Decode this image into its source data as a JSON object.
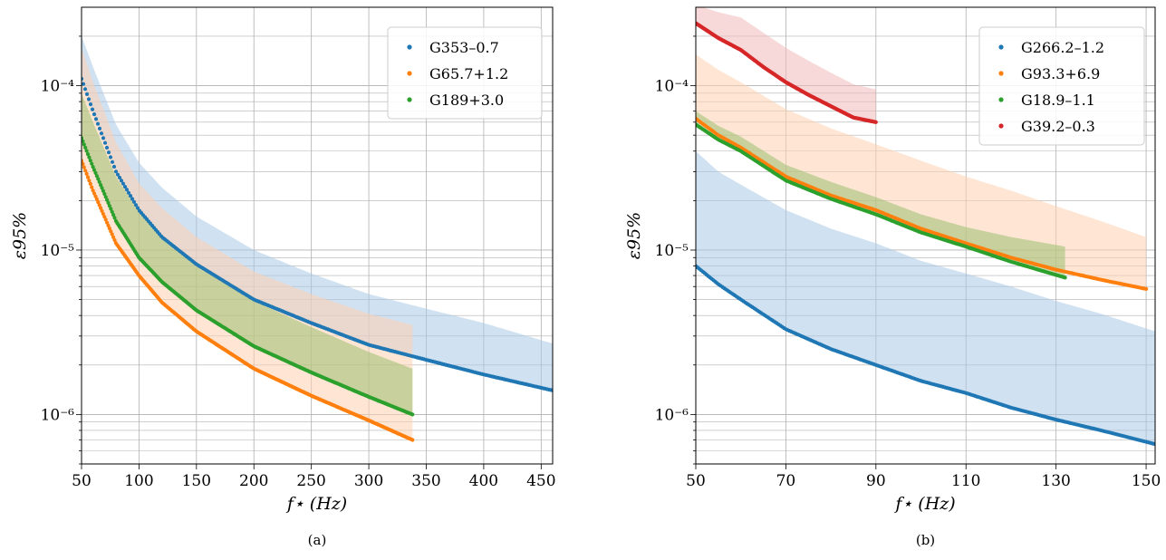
{
  "chart_data": [
    {
      "type": "scatter",
      "panel_label": "(a)",
      "xlabel": "f⋆ (Hz)",
      "ylabel": "ε95%",
      "xlim": [
        50,
        460
      ],
      "ylim": [
        5e-07,
        0.0003
      ],
      "yscale": "log",
      "x_ticks": [
        50,
        100,
        150,
        200,
        250,
        300,
        350,
        400,
        450
      ],
      "y_ticks": [
        {
          "value": 1e-06,
          "label": "10⁻⁶"
        },
        {
          "value": 1e-05,
          "label": "10⁻⁵"
        },
        {
          "value": 0.0001,
          "label": "10⁻⁴"
        }
      ],
      "grid": true,
      "legend_position": "top-right",
      "series": [
        {
          "name": "G353–0.7",
          "color": "#1f77b4",
          "band_color": "#aac9e6",
          "x": [
            50,
            60,
            80,
            100,
            120,
            150,
            200,
            250,
            300,
            350,
            400,
            460
          ],
          "y": [
            0.00011,
            7e-05,
            3e-05,
            1.75e-05,
            1.2e-05,
            8.2e-06,
            5e-06,
            3.6e-06,
            2.65e-06,
            2.15e-06,
            1.75e-06,
            1.4e-06
          ],
          "band_upper": [
            0.0002,
            0.00013,
            5.8e-05,
            3.4e-05,
            2.4e-05,
            1.6e-05,
            1e-05,
            7.2e-06,
            5.4e-06,
            4.4e-06,
            3.6e-06,
            2.7e-06
          ]
        },
        {
          "name": "G65.7+1.2",
          "color": "#ff7f0e",
          "band_color": "#ffd2b0",
          "x": [
            50,
            60,
            80,
            100,
            120,
            150,
            200,
            250,
            300,
            338
          ],
          "y": [
            3.5e-05,
            2.3e-05,
            1.1e-05,
            7e-06,
            4.8e-06,
            3.2e-06,
            1.9e-06,
            1.3e-06,
            9.2e-07,
            7e-07
          ],
          "band_upper": [
            0.00017,
            0.000105,
            4.5e-05,
            2.55e-05,
            1.8e-05,
            1.2e-05,
            7.4e-06,
            5.4e-06,
            4.1e-06,
            3.5e-06
          ]
        },
        {
          "name": "G189+3.0",
          "color": "#2ca02c",
          "band_color": "#9bbf6f",
          "x": [
            50,
            60,
            80,
            100,
            120,
            150,
            200,
            250,
            300,
            338
          ],
          "y": [
            4.8e-05,
            3.2e-05,
            1.5e-05,
            9e-06,
            6.4e-06,
            4.3e-06,
            2.6e-06,
            1.8e-06,
            1.28e-06,
            1e-06
          ],
          "band_upper": [
            9e-05,
            6e-05,
            2.8e-05,
            1.7e-05,
            1.2e-05,
            8e-06,
            4.9e-06,
            3.4e-06,
            2.4e-06,
            1.9e-06
          ]
        }
      ]
    },
    {
      "type": "scatter",
      "panel_label": "(b)",
      "xlabel": "f⋆ (Hz)",
      "ylabel": "ε95%",
      "xlim": [
        50,
        152
      ],
      "ylim": [
        5e-07,
        0.0003
      ],
      "yscale": "log",
      "x_ticks": [
        50,
        70,
        90,
        110,
        130,
        150
      ],
      "y_ticks": [
        {
          "value": 1e-06,
          "label": "10⁻⁶"
        },
        {
          "value": 1e-05,
          "label": "10⁻⁵"
        },
        {
          "value": 0.0001,
          "label": "10⁻⁴"
        }
      ],
      "grid": true,
      "legend_position": "top-right",
      "series": [
        {
          "name": "G266.2–1.2",
          "color": "#1f77b4",
          "band_color": "#aac9e6",
          "x": [
            50,
            55,
            60,
            70,
            80,
            90,
            100,
            110,
            120,
            130,
            140,
            152
          ],
          "y": [
            8e-06,
            6.2e-06,
            5e-06,
            3.3e-06,
            2.5e-06,
            2e-06,
            1.6e-06,
            1.35e-06,
            1.1e-06,
            9.3e-07,
            8e-07,
            6.6e-07
          ],
          "band_upper": [
            4e-05,
            3e-05,
            2.5e-05,
            1.75e-05,
            1.35e-05,
            1.1e-05,
            8.6e-06,
            7.2e-06,
            6e-06,
            4.9e-06,
            4.1e-06,
            3.2e-06
          ]
        },
        {
          "name": "G93.3+6.9",
          "color": "#ff7f0e",
          "band_color": "#ffd2b0",
          "x": [
            50,
            55,
            60,
            70,
            80,
            90,
            100,
            110,
            120,
            130,
            140,
            150
          ],
          "y": [
            6.3e-05,
            5e-05,
            4.2e-05,
            2.8e-05,
            2.15e-05,
            1.75e-05,
            1.35e-05,
            1.1e-05,
            9e-06,
            7.6e-06,
            6.6e-06,
            5.8e-06
          ],
          "band_upper": [
            0.000155,
            0.000125,
            0.000105,
            7.2e-05,
            5.5e-05,
            4.4e-05,
            3.5e-05,
            2.8e-05,
            2.3e-05,
            1.85e-05,
            1.5e-05,
            1.2e-05
          ]
        },
        {
          "name": "G18.9–1.1",
          "color": "#2ca02c",
          "band_color": "#9bbf6f",
          "x": [
            50,
            55,
            60,
            70,
            80,
            90,
            100,
            110,
            120,
            132
          ],
          "y": [
            5.8e-05,
            4.7e-05,
            4e-05,
            2.65e-05,
            2.05e-05,
            1.65e-05,
            1.28e-05,
            1.05e-05,
            8.5e-06,
            6.8e-06
          ],
          "band_upper": [
            7e-05,
            5.7e-05,
            4.9e-05,
            3.3e-05,
            2.6e-05,
            2.1e-05,
            1.65e-05,
            1.38e-05,
            1.2e-05,
            1.05e-05
          ]
        },
        {
          "name": "G39.2–0.3",
          "color": "#d62728",
          "band_color": "#f3b9b9",
          "x": [
            50,
            55,
            60,
            65,
            70,
            75,
            80,
            85,
            90
          ],
          "y": [
            0.00024,
            0.000195,
            0.000165,
            0.00013,
            0.000105,
            8.8e-05,
            7.5e-05,
            6.4e-05,
            6e-05
          ],
          "band_upper": [
            0.00031,
            0.00028,
            0.00026,
            0.00021,
            0.00017,
            0.000142,
            0.00012,
            0.000102,
            9.5e-05
          ]
        }
      ]
    }
  ]
}
